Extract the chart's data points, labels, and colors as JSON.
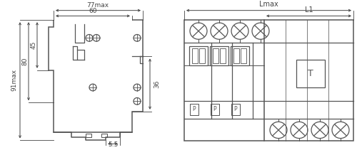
{
  "bg_color": "#ffffff",
  "line_color": "#555555",
  "dim_color": "#555555",
  "text_color": "#444444",
  "fig_width": 5.0,
  "fig_height": 2.11,
  "dpi": 100,
  "left_view": {
    "label_77max": "77max",
    "label_60": "60",
    "label_91max": "91max",
    "label_80": "80",
    "label_45": "45",
    "label_36": "36",
    "label_5p5": "5.5"
  },
  "right_view": {
    "label_Lmax": "Lmax",
    "label_L1": "L1",
    "label_T": "T"
  }
}
